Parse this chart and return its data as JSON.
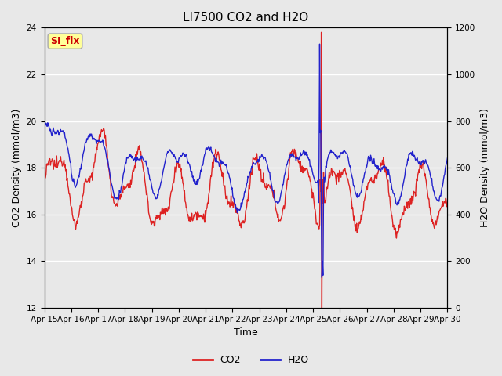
{
  "title": "LI7500 CO2 and H2O",
  "xlabel": "Time",
  "ylabel_left": "CO2 Density (mmol/m3)",
  "ylabel_right": "H2O Density (mmol/m3)",
  "annotation_text": "SI_flx",
  "annotation_bg": "#ffff99",
  "annotation_border": "#aaaaaa",
  "annotation_text_color": "#cc0000",
  "x_tick_labels": [
    "Apr 15",
    "Apr 16",
    "Apr 17",
    "Apr 18",
    "Apr 19",
    "Apr 20",
    "Apr 21",
    "Apr 22",
    "Apr 23",
    "Apr 24",
    "Apr 25",
    "Apr 26",
    "Apr 27",
    "Apr 28",
    "Apr 29",
    "Apr 30"
  ],
  "ylim_left": [
    12,
    24
  ],
  "ylim_right": [
    0,
    1200
  ],
  "yticks_left": [
    12,
    14,
    16,
    18,
    20,
    22,
    24
  ],
  "yticks_right": [
    0,
    200,
    400,
    600,
    800,
    1000,
    1200
  ],
  "bg_color": "#e8e8e8",
  "plot_bg_color": "#e8e8e8",
  "line_color_co2": "#dd2222",
  "line_color_h2o": "#2222cc",
  "line_width": 1.0,
  "legend_co2": "CO2",
  "legend_h2o": "H2O",
  "grid_color": "#ffffff",
  "n_points": 720
}
